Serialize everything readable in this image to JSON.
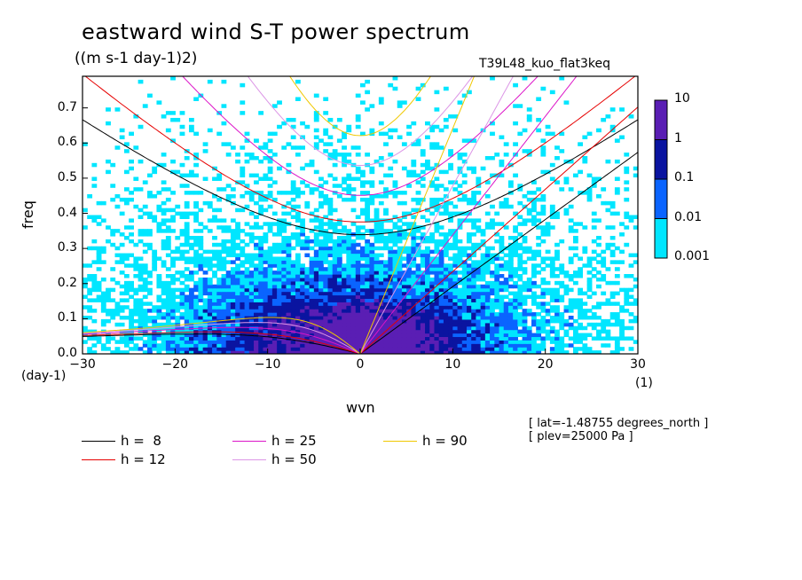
{
  "title": "eastward wind S-T power spectrum",
  "subtitle": "((m s-1 day-1)2)",
  "run_name": "T39L48_kuo_flat3keq",
  "ylabel": "freq",
  "ylabel_unit": "(day-1)",
  "xlabel": "wvn",
  "xlabel_unit": "(1)",
  "meta": [
    "[ lat=-1.48755 degrees_north ]",
    "[ plev=25000 Pa ]"
  ],
  "chart_data": {
    "type": "heatmap",
    "title": "eastward wind S-T power spectrum",
    "xlabel": "wvn",
    "ylabel": "freq",
    "xlim": [
      -30,
      30
    ],
    "ylim": [
      0,
      0.79
    ],
    "x_ticks": [
      "-30",
      "-20",
      "-10",
      "0",
      "10",
      "20",
      "30"
    ],
    "y_ticks": [
      "0.0",
      "0.1",
      "0.2",
      "0.3",
      "0.4",
      "0.5",
      "0.6",
      "0.7"
    ],
    "colorbar": {
      "levels": [
        "10",
        "1",
        "0.1",
        "0.01",
        "0.001"
      ],
      "colors": [
        "#5a1eb4",
        "#0a14a0",
        "#0a64ff",
        "#00e6ff"
      ]
    },
    "dispersion_curves": [
      {
        "name": "h =  8",
        "h": 8,
        "color": "#000000"
      },
      {
        "name": "h = 12",
        "h": 12,
        "color": "#e60000"
      },
      {
        "name": "h = 25",
        "h": 25,
        "color": "#dc14c8"
      },
      {
        "name": "h = 50",
        "h": 50,
        "color": "#dc96e6"
      },
      {
        "name": "h = 90",
        "h": 90,
        "color": "#f0c800"
      }
    ]
  }
}
